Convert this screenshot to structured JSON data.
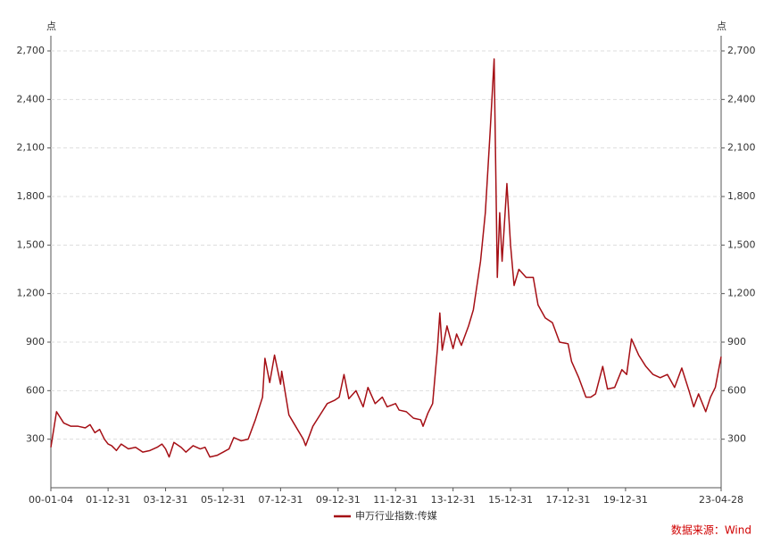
{
  "chart_data": {
    "type": "line",
    "y_unit": "点",
    "y2_unit": "点",
    "x": [
      "00-01-04",
      "00-03-15",
      "00-06-15",
      "00-09-15",
      "00-12-15",
      "01-03-15",
      "01-05-15",
      "01-07-15",
      "01-09-15",
      "01-11-15",
      "01-12-31",
      "02-02-15",
      "02-04-15",
      "02-06-15",
      "02-09-15",
      "02-12-15",
      "03-03-15",
      "03-06-15",
      "03-09-15",
      "03-11-15",
      "03-12-31",
      "04-02-15",
      "04-04-15",
      "04-07-15",
      "04-09-15",
      "04-12-15",
      "05-03-15",
      "05-05-15",
      "05-07-15",
      "05-10-15",
      "05-12-31",
      "06-03-15",
      "06-05-15",
      "06-08-15",
      "06-11-15",
      "07-02-15",
      "07-05-15",
      "07-06-15",
      "07-08-15",
      "07-10-15",
      "07-12-31",
      "08-01-15",
      "08-04-15",
      "08-06-15",
      "08-10-15",
      "08-11-15",
      "09-02-15",
      "09-05-15",
      "09-08-15",
      "09-11-15",
      "10-01-15",
      "10-03-15",
      "10-05-15",
      "10-08-15",
      "10-11-15",
      "11-01-15",
      "11-04-15",
      "11-07-15",
      "11-09-15",
      "11-12-31",
      "12-02-15",
      "12-05-15",
      "12-08-15",
      "12-11-15",
      "12-12-15",
      "13-02-15",
      "13-04-15",
      "13-06-15",
      "13-07-15",
      "13-08-15",
      "13-10-15",
      "13-12-31",
      "14-02-15",
      "14-04-15",
      "14-07-15",
      "14-09-15",
      "14-12-15",
      "15-02-15",
      "15-04-15",
      "15-06-05",
      "15-07-15",
      "15-08-15",
      "15-09-15",
      "15-11-15",
      "15-12-31",
      "16-02-15",
      "16-04-15",
      "16-07-15",
      "16-10-15",
      "16-12-15",
      "17-03-15",
      "17-06-15",
      "17-09-15",
      "17-12-31",
      "18-02-15",
      "18-05-15",
      "18-08-15",
      "18-10-15",
      "18-12-15",
      "19-03-15",
      "19-05-15",
      "19-08-15",
      "19-11-15",
      "20-01-15",
      "20-03-15",
      "20-06-15",
      "20-09-15",
      "20-12-15",
      "21-03-15",
      "21-06-15",
      "21-09-15",
      "21-12-15",
      "22-03-15",
      "22-05-15",
      "22-07-15",
      "22-10-15",
      "22-12-15",
      "23-02-15",
      "23-04-28"
    ],
    "series": [
      {
        "name": "申万行业指数:传媒",
        "color": "#a50f15",
        "values": [
          250,
          470,
          400,
          380,
          380,
          370,
          390,
          340,
          360,
          300,
          270,
          260,
          230,
          270,
          240,
          250,
          220,
          230,
          250,
          270,
          240,
          190,
          280,
          250,
          220,
          260,
          240,
          250,
          190,
          200,
          220,
          240,
          310,
          290,
          300,
          420,
          560,
          800,
          650,
          820,
          640,
          720,
          450,
          400,
          300,
          260,
          380,
          450,
          520,
          540,
          560,
          700,
          550,
          600,
          500,
          620,
          520,
          560,
          500,
          520,
          480,
          470,
          430,
          420,
          380,
          460,
          520,
          860,
          1080,
          850,
          1000,
          860,
          950,
          880,
          1000,
          1100,
          1400,
          1700,
          2200,
          2650,
          1300,
          1700,
          1400,
          1880,
          1500,
          1250,
          1350,
          1300,
          1300,
          1130,
          1050,
          1020,
          900,
          890,
          780,
          680,
          560,
          560,
          580,
          750,
          610,
          620,
          730,
          700,
          920,
          820,
          750,
          700,
          680,
          700,
          620,
          740,
          600,
          500,
          580,
          470,
          560,
          620,
          810
        ]
      }
    ],
    "xticks": [
      "00-01-04",
      "01-12-31",
      "03-12-31",
      "05-12-31",
      "07-12-31",
      "09-12-31",
      "11-12-31",
      "13-12-31",
      "15-12-31",
      "17-12-31",
      "19-12-31",
      "23-04-28"
    ],
    "ylim": [
      0,
      2700
    ],
    "y2lim": [
      0,
      2700
    ],
    "yticks": [
      {
        "value": 300,
        "label": "300"
      },
      {
        "value": 600,
        "label": "600"
      },
      {
        "value": 900,
        "label": "900"
      },
      {
        "value": 1200,
        "label": "1,200"
      },
      {
        "value": 1500,
        "label": "1,500"
      },
      {
        "value": 1800,
        "label": "1,800"
      },
      {
        "value": 2100,
        "label": "2,100"
      },
      {
        "value": 2400,
        "label": "2,400"
      },
      {
        "value": 2700,
        "label": "2,700"
      }
    ],
    "y2ticks": [
      {
        "value": 300,
        "label": "300"
      },
      {
        "value": 600,
        "label": "600"
      },
      {
        "value": 900,
        "label": "900"
      },
      {
        "value": 1200,
        "label": "1,200"
      },
      {
        "value": 1500,
        "label": "1,500"
      },
      {
        "value": 1800,
        "label": "1,800"
      },
      {
        "value": 2100,
        "label": "2,100"
      },
      {
        "value": 2400,
        "label": "2,400"
      },
      {
        "value": 2700,
        "label": "2,700"
      }
    ],
    "grid": true,
    "legend": "bottom",
    "source": "数据来源：Wind"
  }
}
